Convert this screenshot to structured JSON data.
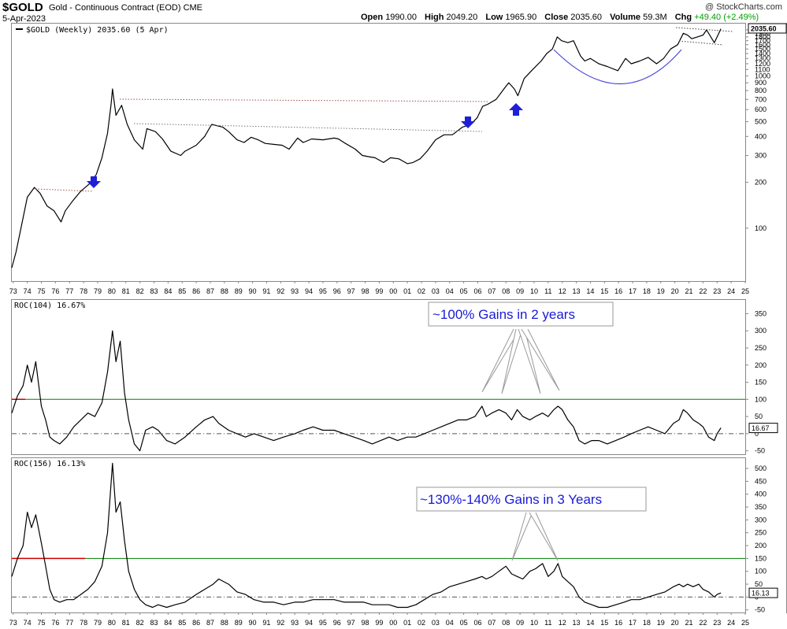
{
  "header": {
    "symbol": "$GOLD",
    "description": "Gold - Continuous Contract (EOD)",
    "exchange": "CME",
    "date": "5-Apr-2023",
    "open_label": "Open",
    "open": "1990.00",
    "high_label": "High",
    "high": "2049.20",
    "low_label": "Low",
    "low": "1965.90",
    "close_label": "Close",
    "close": "2035.60",
    "volume_label": "Volume",
    "volume": "59.3M",
    "chg_label": "Chg",
    "chg": "+49.40 (+2.49%)",
    "brand": "@ StockCharts.com"
  },
  "colors": {
    "price_line": "#000000",
    "resistance_dotted": "#a05050",
    "arrow": "#1f1fd8",
    "arc": "#4a4ad8",
    "zero_line": "#555555",
    "green_line": "#008000",
    "callout_text": "#1a1ad8"
  },
  "x_ticks": [
    "73",
    "74",
    "75",
    "76",
    "77",
    "78",
    "79",
    "80",
    "81",
    "82",
    "83",
    "84",
    "85",
    "86",
    "87",
    "88",
    "89",
    "90",
    "91",
    "92",
    "93",
    "94",
    "95",
    "96",
    "97",
    "98",
    "99",
    "00",
    "01",
    "02",
    "03",
    "04",
    "05",
    "06",
    "07",
    "08",
    "09",
    "10",
    "11",
    "12",
    "13",
    "14",
    "15",
    "16",
    "17",
    "18",
    "19",
    "20",
    "21",
    "22",
    "23",
    "24",
    "25"
  ],
  "chart_data": [
    {
      "type": "line",
      "name": "price",
      "label": "$GOLD (Weekly) 2035.60 (5 Apr)",
      "y_scale": "log",
      "ylim": [
        45,
        2200
      ],
      "y_ticks": [
        "100",
        "200",
        "300",
        "400",
        "500",
        "600",
        "700",
        "800",
        "900",
        "1000",
        "1100",
        "1200",
        "1300",
        "1400",
        "1500",
        "1600",
        "1700",
        "1800",
        "1900",
        "2000"
      ],
      "last_value": "2035.60",
      "x": [
        1972.9,
        1973.2,
        1973.5,
        1974.0,
        1974.5,
        1974.9,
        1975.4,
        1975.9,
        1976.4,
        1976.7,
        1977.2,
        1977.8,
        1978.4,
        1978.9,
        1979.3,
        1979.7,
        1979.95,
        1980.05,
        1980.3,
        1980.7,
        1981.1,
        1981.6,
        1982.2,
        1982.5,
        1983.1,
        1983.6,
        1984.2,
        1984.9,
        1985.2,
        1986.0,
        1986.6,
        1987.1,
        1987.9,
        1988.3,
        1988.9,
        1989.4,
        1989.9,
        1990.4,
        1990.9,
        1991.5,
        1992.1,
        1992.6,
        1993.2,
        1993.6,
        1994.2,
        1995.0,
        1995.8,
        1996.1,
        1996.6,
        1997.3,
        1997.8,
        1998.2,
        1998.7,
        1999.3,
        1999.8,
        2000.4,
        2001.0,
        2001.4,
        2001.9,
        2002.4,
        2003.0,
        2003.6,
        2004.2,
        2004.9,
        2005.5,
        2005.95,
        2006.35,
        2006.7,
        2007.3,
        2007.9,
        2008.2,
        2008.6,
        2008.85,
        2009.3,
        2009.9,
        2010.5,
        2010.9,
        2011.3,
        2011.65,
        2011.95,
        2012.4,
        2012.8,
        2013.3,
        2013.6,
        2014.0,
        2014.6,
        2015.2,
        2015.95,
        2016.5,
        2016.9,
        2017.5,
        2018.1,
        2018.7,
        2019.2,
        2019.7,
        2020.2,
        2020.6,
        2020.9,
        2021.2,
        2021.6,
        2022.0,
        2022.25,
        2022.8,
        2023.0,
        2023.27
      ],
      "y": [
        55,
        70,
        95,
        160,
        185,
        170,
        140,
        130,
        110,
        130,
        150,
        175,
        195,
        225,
        290,
        420,
        650,
        820,
        550,
        640,
        480,
        380,
        330,
        450,
        430,
        385,
        320,
        300,
        320,
        350,
        400,
        480,
        460,
        430,
        380,
        365,
        395,
        380,
        360,
        355,
        350,
        330,
        390,
        365,
        385,
        380,
        390,
        385,
        360,
        330,
        300,
        295,
        290,
        270,
        290,
        285,
        265,
        270,
        285,
        320,
        380,
        410,
        410,
        460,
        480,
        530,
        630,
        650,
        700,
        830,
        900,
        820,
        740,
        960,
        1100,
        1250,
        1400,
        1500,
        1800,
        1700,
        1650,
        1700,
        1350,
        1250,
        1300,
        1200,
        1150,
        1080,
        1300,
        1200,
        1250,
        1320,
        1200,
        1300,
        1500,
        1600,
        1900,
        1850,
        1750,
        1800,
        1850,
        2000,
        1650,
        1800,
        2035
      ]
    },
    {
      "type": "line",
      "name": "roc104",
      "label": "ROC(104) 16.67%",
      "ylim": [
        -60,
        390
      ],
      "y_ticks": [
        "-50",
        "0",
        "50",
        "100",
        "150",
        "200",
        "250",
        "300",
        "350"
      ],
      "reference_line": 100,
      "last_value": "16.67",
      "x": [
        1972.9,
        1973.3,
        1973.7,
        1974.0,
        1974.3,
        1974.6,
        1975.0,
        1975.3,
        1975.6,
        1975.9,
        1976.3,
        1976.8,
        1977.3,
        1977.8,
        1978.3,
        1978.8,
        1979.3,
        1979.7,
        1980.05,
        1980.3,
        1980.6,
        1980.9,
        1981.2,
        1981.6,
        1982.0,
        1982.4,
        1982.9,
        1983.3,
        1983.9,
        1984.5,
        1985.2,
        1986.0,
        1986.6,
        1987.2,
        1987.6,
        1988.3,
        1988.9,
        1989.5,
        1990.1,
        1990.8,
        1991.5,
        1992.2,
        1993.0,
        1993.6,
        1994.3,
        1995.0,
        1995.8,
        1996.5,
        1997.2,
        1997.9,
        1998.5,
        1999.1,
        1999.7,
        2000.3,
        2001.0,
        2001.6,
        2002.2,
        2002.8,
        2003.4,
        2004.0,
        2004.6,
        2005.2,
        2005.8,
        2006.3,
        2006.6,
        2007.0,
        2007.5,
        2008.0,
        2008.4,
        2008.8,
        2009.2,
        2009.7,
        2010.1,
        2010.6,
        2011.0,
        2011.4,
        2011.7,
        2012.0,
        2012.4,
        2012.8,
        2013.2,
        2013.6,
        2014.1,
        2014.6,
        2015.2,
        2015.8,
        2016.4,
        2016.9,
        2017.5,
        2018.1,
        2018.7,
        2019.3,
        2019.9,
        2020.3,
        2020.6,
        2020.9,
        2021.3,
        2021.7,
        2022.0,
        2022.4,
        2022.8,
        2023.0,
        2023.27
      ],
      "y": [
        60,
        110,
        140,
        200,
        150,
        210,
        80,
        40,
        -10,
        -20,
        -30,
        -10,
        20,
        40,
        60,
        50,
        90,
        180,
        300,
        210,
        270,
        120,
        40,
        -30,
        -50,
        10,
        20,
        10,
        -20,
        -30,
        -10,
        20,
        40,
        50,
        30,
        10,
        0,
        -10,
        0,
        -10,
        -20,
        -10,
        0,
        10,
        20,
        10,
        10,
        0,
        -10,
        -20,
        -30,
        -20,
        -10,
        -20,
        -10,
        -10,
        0,
        10,
        20,
        30,
        40,
        40,
        50,
        80,
        50,
        60,
        70,
        60,
        40,
        70,
        50,
        40,
        50,
        60,
        50,
        70,
        80,
        70,
        40,
        20,
        -20,
        -30,
        -20,
        -20,
        -30,
        -20,
        -10,
        0,
        10,
        20,
        10,
        0,
        30,
        40,
        70,
        60,
        40,
        30,
        20,
        -10,
        -20,
        0,
        17
      ]
    },
    {
      "type": "line",
      "name": "roc156",
      "label": "ROC(156) 16.13%",
      "ylim": [
        -60,
        540
      ],
      "y_ticks": [
        "-50",
        "0",
        "50",
        "100",
        "150",
        "200",
        "250",
        "300",
        "350",
        "400",
        "450",
        "500"
      ],
      "reference_line": 150,
      "last_value": "16.13",
      "x": [
        1972.9,
        1973.3,
        1973.7,
        1974.0,
        1974.3,
        1974.6,
        1975.0,
        1975.3,
        1975.6,
        1975.9,
        1976.3,
        1976.8,
        1977.3,
        1977.8,
        1978.3,
        1978.8,
        1979.3,
        1979.7,
        1980.05,
        1980.3,
        1980.6,
        1980.9,
        1981.2,
        1981.6,
        1982.0,
        1982.4,
        1982.9,
        1983.3,
        1983.9,
        1984.5,
        1985.2,
        1986.0,
        1986.6,
        1987.2,
        1987.6,
        1988.3,
        1988.9,
        1989.5,
        1990.1,
        1990.8,
        1991.5,
        1992.2,
        1993.0,
        1993.6,
        1994.3,
        1995.0,
        1995.8,
        1996.5,
        1997.2,
        1997.9,
        1998.5,
        1999.1,
        1999.7,
        2000.3,
        2001.0,
        2001.6,
        2002.2,
        2002.8,
        2003.4,
        2004.0,
        2004.6,
        2005.2,
        2005.8,
        2006.3,
        2006.6,
        2007.0,
        2007.5,
        2008.0,
        2008.4,
        2008.8,
        2009.2,
        2009.7,
        2010.1,
        2010.6,
        2011.0,
        2011.4,
        2011.7,
        2012.0,
        2012.4,
        2012.8,
        2013.2,
        2013.6,
        2014.1,
        2014.6,
        2015.2,
        2015.8,
        2016.4,
        2016.9,
        2017.5,
        2018.1,
        2018.7,
        2019.3,
        2019.9,
        2020.3,
        2020.6,
        2020.9,
        2021.3,
        2021.7,
        2022.0,
        2022.4,
        2022.8,
        2023.0,
        2023.27
      ],
      "y": [
        80,
        150,
        200,
        330,
        270,
        320,
        210,
        120,
        30,
        -10,
        -20,
        -10,
        -10,
        10,
        30,
        60,
        120,
        250,
        520,
        330,
        370,
        220,
        100,
        30,
        -10,
        -30,
        -40,
        -30,
        -40,
        -30,
        -20,
        10,
        30,
        50,
        70,
        50,
        20,
        10,
        -10,
        -20,
        -20,
        -30,
        -20,
        -20,
        -10,
        -10,
        -10,
        -20,
        -20,
        -20,
        -30,
        -30,
        -30,
        -40,
        -40,
        -30,
        -10,
        10,
        20,
        40,
        50,
        60,
        70,
        80,
        70,
        80,
        100,
        120,
        90,
        80,
        70,
        100,
        110,
        130,
        80,
        100,
        130,
        80,
        60,
        40,
        0,
        -20,
        -30,
        -40,
        -40,
        -30,
        -20,
        -10,
        -10,
        0,
        10,
        20,
        40,
        50,
        40,
        50,
        40,
        50,
        30,
        20,
        0,
        10,
        16
      ]
    }
  ],
  "annotations": {
    "callout_roc104": "~100% Gains in 2 years",
    "callout_roc156": "~130%-140% Gains in 3 Years"
  }
}
